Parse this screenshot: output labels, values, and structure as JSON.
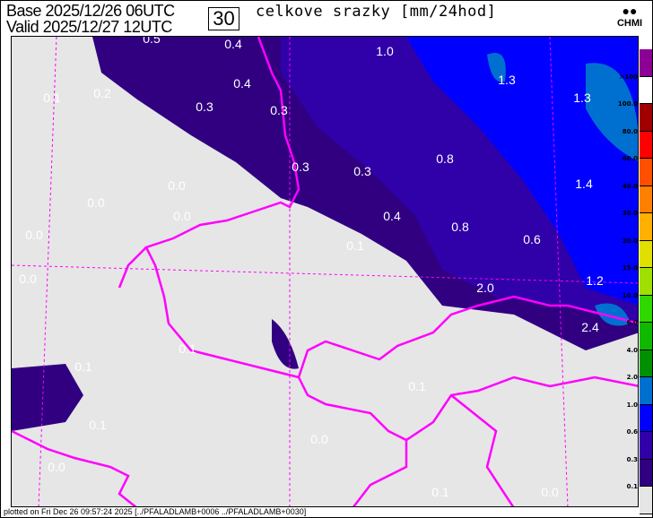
{
  "header": {
    "base_label": "Base",
    "base_time": "2025/12/26 06UTC",
    "valid_label": "Valid",
    "valid_time": "2025/12/27 12UTC",
    "step": "30",
    "title": "celkove srazky [mm/24hod]",
    "logo": "CHMI"
  },
  "footer": "plotted on Fri Dec 26 09:57:24 2025 [../PFALADLAMB+0006 ../PFALADLAMB+0030]",
  "legend": {
    "colors": [
      "#8c0096",
      "#ffffff",
      "#a00000",
      "#ff0000",
      "#ff5000",
      "#ff8000",
      "#ffb000",
      "#e0e000",
      "#a0e000",
      "#30d800",
      "#10b800",
      "#009000",
      "#0070d0",
      "#0000ff",
      "#3000a8",
      "#300080",
      "#e6e6e6"
    ],
    "labels": [
      ">100",
      "100.0",
      "80.0",
      "60.0",
      "40.0",
      "30.0",
      "20.0",
      "15.0",
      "10.0",
      "6.0",
      "4.0",
      "2.0",
      "1.0",
      "0.6",
      "0.3",
      "0.1"
    ]
  },
  "map": {
    "border_color": "#ff00ff",
    "background": "#e6e6e6",
    "values": [
      "0.5",
      "0.4",
      "1.0",
      "0.1",
      "0.2",
      "0.4",
      "1.3",
      "1.3",
      "0.3",
      "0.3",
      "0.3",
      "0.3",
      "0.8",
      "1.4",
      "0.0",
      "0.0",
      "0.0",
      "0.4",
      "0.8",
      "0.6",
      "0.0",
      "0.1",
      "0.0",
      "1.2",
      "2.0",
      "2.4",
      "0.1",
      "0.1",
      "0.1",
      "0.1",
      "0.0",
      "0.0",
      "0.1",
      "0.0"
    ]
  }
}
